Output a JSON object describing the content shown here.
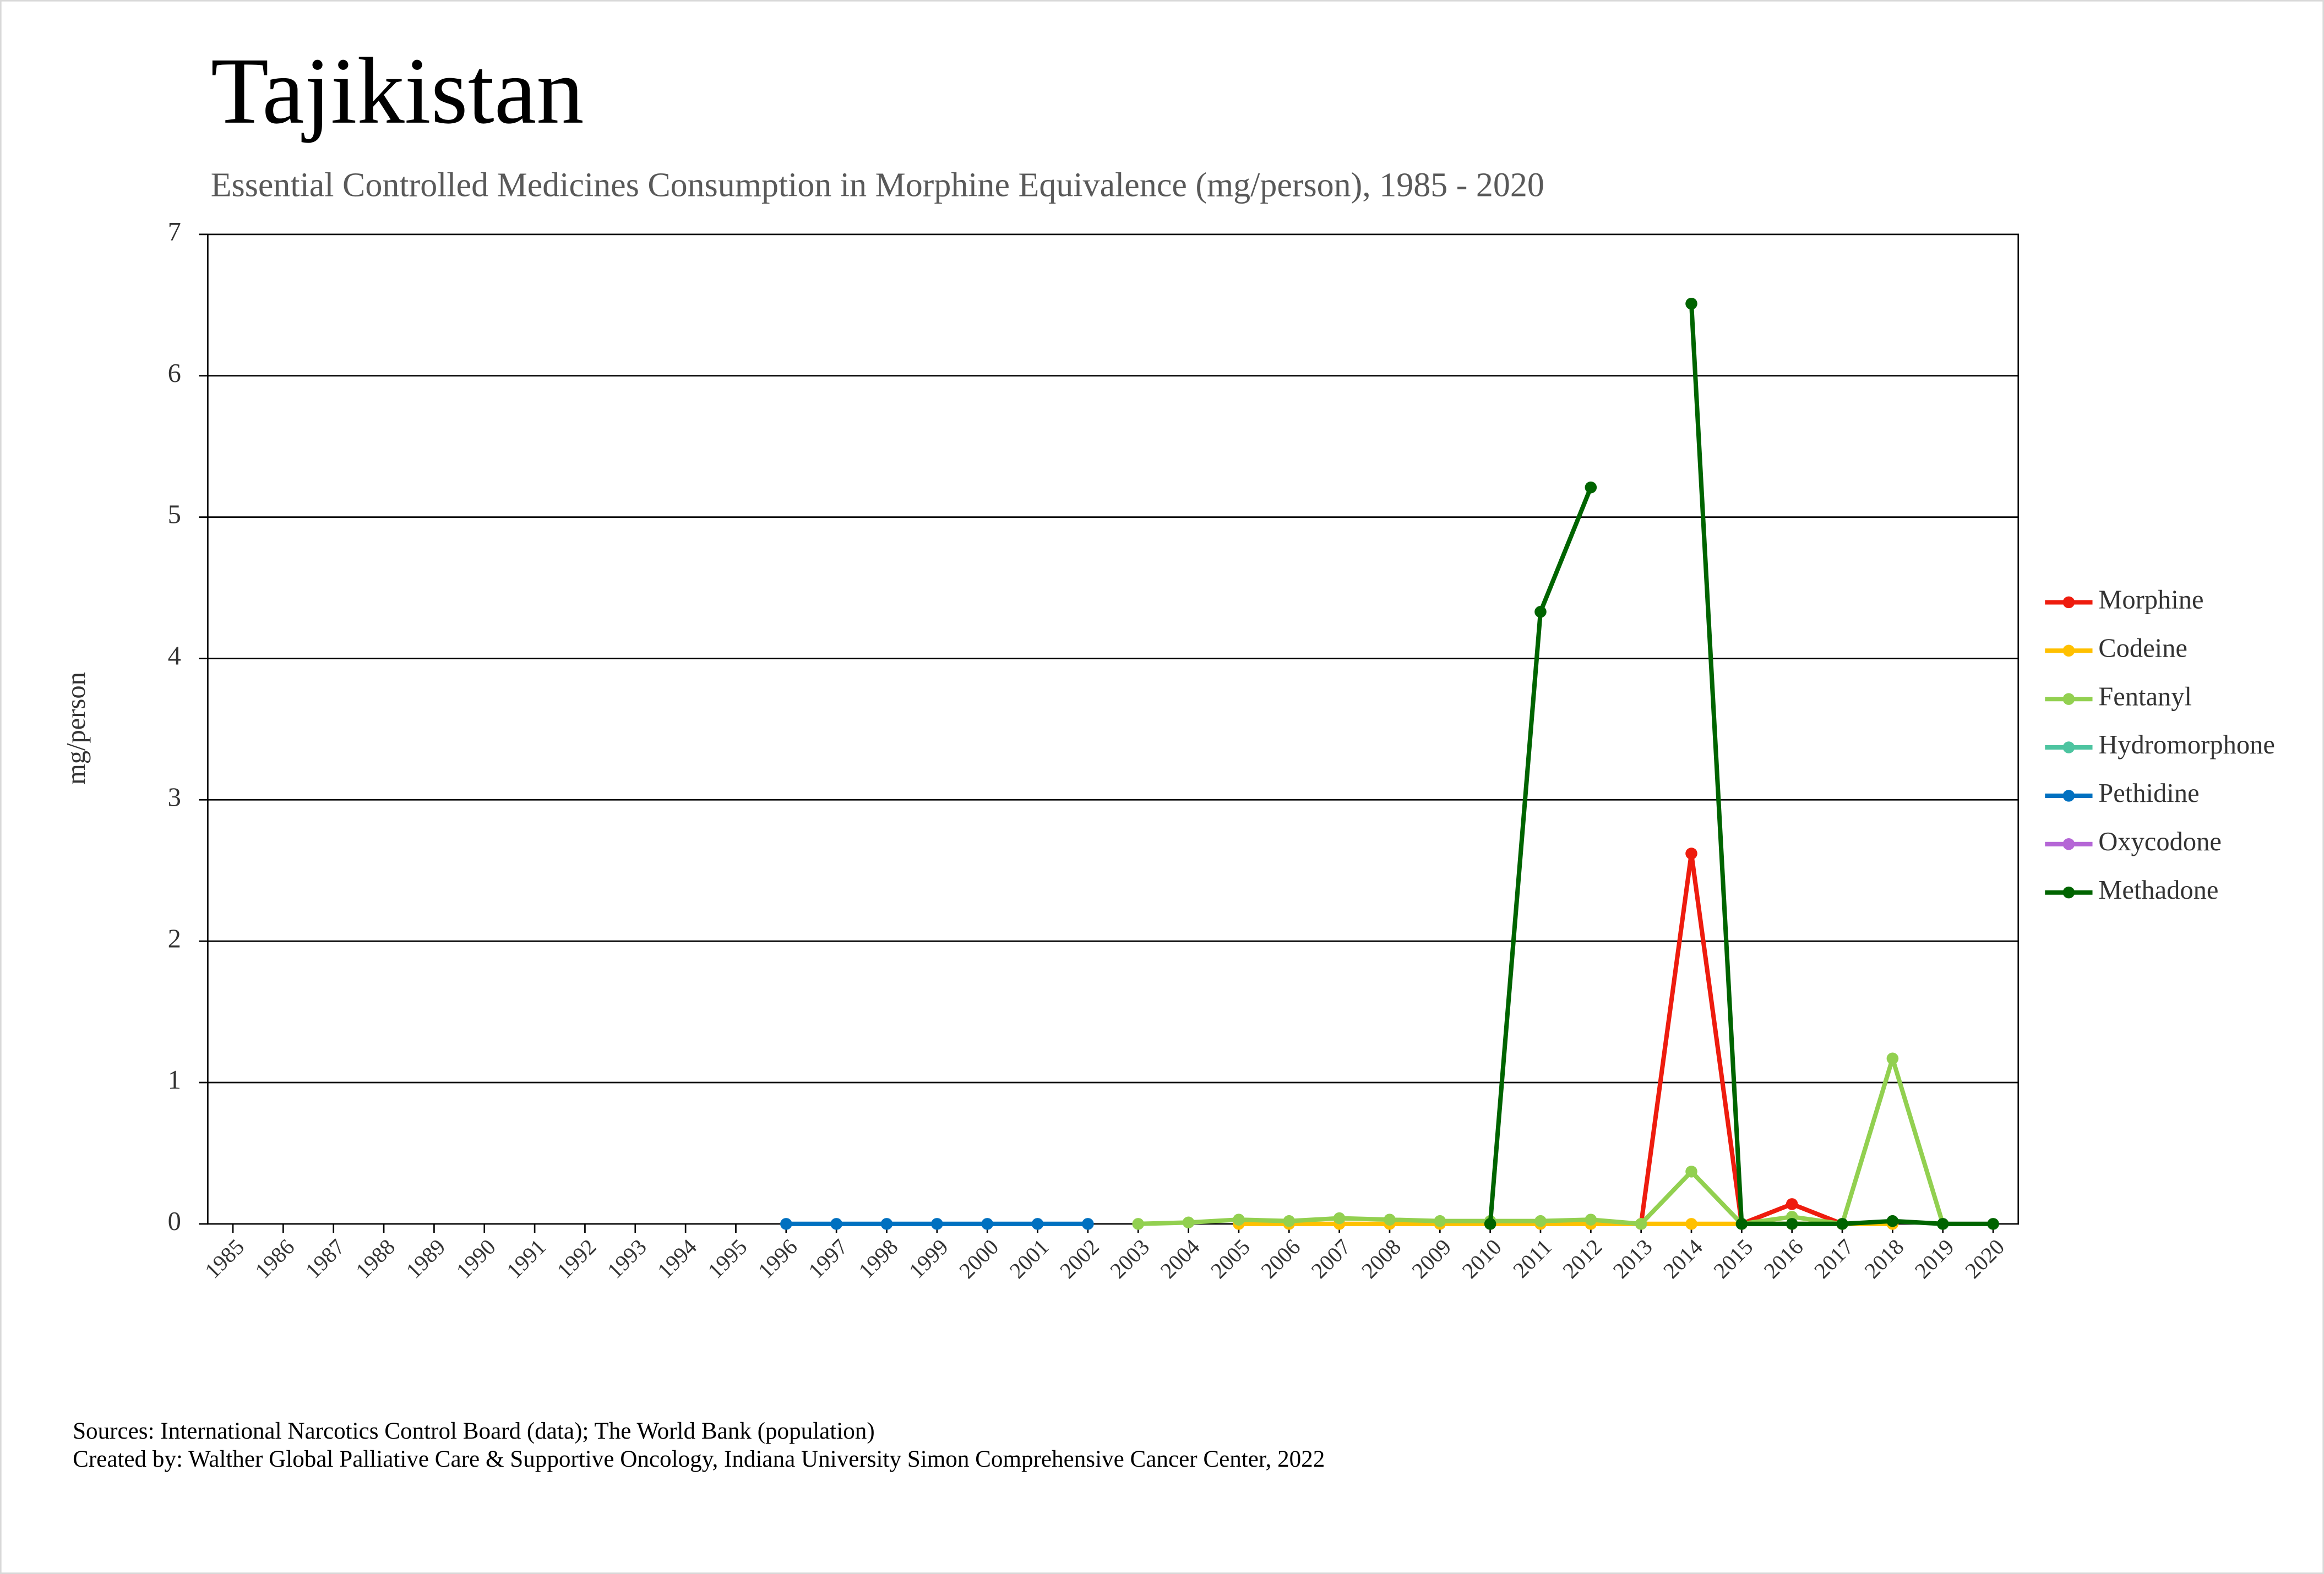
{
  "chart_data": {
    "type": "line",
    "title": "Tajikistan",
    "subtitle": "Essential Controlled Medicines Consumption in Morphine Equivalence (mg/person), 1985 - 2020",
    "y_label": "mg/person",
    "categories": [
      "1985",
      "1986",
      "1987",
      "1988",
      "1989",
      "1990",
      "1991",
      "1992",
      "1993",
      "1994",
      "1995",
      "1996",
      "1997",
      "1998",
      "1999",
      "2000",
      "2001",
      "2002",
      "2003",
      "2004",
      "2005",
      "2006",
      "2007",
      "2008",
      "2009",
      "2010",
      "2011",
      "2012",
      "2013",
      "2014",
      "2015",
      "2016",
      "2017",
      "2018",
      "2019",
      "2020"
    ],
    "ylim": [
      0,
      7
    ],
    "yticks": [
      0,
      1,
      2,
      3,
      4,
      5,
      6,
      7
    ],
    "grid": true,
    "legend": "right",
    "series": [
      {
        "name": "Morphine",
        "color": "#ee1c0e",
        "values": [
          null,
          null,
          null,
          null,
          null,
          null,
          null,
          null,
          null,
          null,
          null,
          null,
          null,
          null,
          null,
          null,
          null,
          null,
          null,
          null,
          null,
          null,
          null,
          null,
          null,
          null,
          null,
          null,
          0,
          2.62,
          0,
          0.14,
          0,
          null,
          null,
          null
        ]
      },
      {
        "name": "Codeine",
        "color": "#ffc000",
        "values": [
          null,
          null,
          null,
          null,
          null,
          null,
          null,
          null,
          null,
          null,
          null,
          null,
          null,
          null,
          null,
          null,
          null,
          null,
          null,
          null,
          0,
          0,
          0,
          0,
          0,
          0,
          0,
          0,
          0,
          0,
          0,
          0,
          0,
          0,
          null,
          null
        ]
      },
      {
        "name": "Fentanyl",
        "color": "#92d050",
        "values": [
          null,
          null,
          null,
          null,
          null,
          null,
          null,
          null,
          null,
          null,
          null,
          null,
          null,
          null,
          null,
          null,
          null,
          null,
          0,
          0.01,
          0.03,
          0.02,
          0.04,
          0.03,
          0.02,
          0.02,
          0.02,
          0.03,
          0,
          0.37,
          0,
          0.05,
          0,
          1.17,
          0,
          null
        ]
      },
      {
        "name": "Hydromorphone",
        "color": "#4dc4a0",
        "values": [
          null,
          null,
          null,
          null,
          null,
          null,
          null,
          null,
          null,
          null,
          null,
          null,
          null,
          null,
          null,
          null,
          null,
          null,
          null,
          null,
          null,
          null,
          null,
          null,
          null,
          null,
          null,
          null,
          null,
          null,
          null,
          null,
          null,
          null,
          null,
          null
        ]
      },
      {
        "name": "Pethidine",
        "color": "#0070c0",
        "values": [
          null,
          null,
          null,
          null,
          null,
          null,
          null,
          null,
          null,
          null,
          null,
          0,
          0,
          0,
          0,
          0,
          0,
          0,
          null,
          null,
          null,
          null,
          null,
          null,
          null,
          null,
          null,
          null,
          null,
          null,
          null,
          null,
          null,
          null,
          null,
          null
        ]
      },
      {
        "name": "Oxycodone",
        "color": "#b566d6",
        "values": [
          null,
          null,
          null,
          null,
          null,
          null,
          null,
          null,
          null,
          null,
          null,
          null,
          null,
          null,
          null,
          null,
          null,
          null,
          null,
          null,
          null,
          null,
          null,
          null,
          null,
          null,
          null,
          null,
          null,
          null,
          null,
          null,
          null,
          null,
          null,
          null
        ]
      },
      {
        "name": "Methadone",
        "color": "#006400",
        "values": [
          null,
          null,
          null,
          null,
          null,
          null,
          null,
          null,
          null,
          null,
          null,
          null,
          null,
          null,
          null,
          null,
          null,
          null,
          null,
          null,
          null,
          null,
          null,
          null,
          null,
          0,
          4.33,
          5.21,
          null,
          6.51,
          0,
          0,
          0,
          0.02,
          0,
          0
        ]
      }
    ],
    "notes": [
      "Sources: International Narcotics Control Board (data); The World Bank (population)",
      "Created by: Walther Global Palliative Care & Supportive Oncology, Indiana University Simon Comprehensive Cancer Center, 2022"
    ]
  }
}
